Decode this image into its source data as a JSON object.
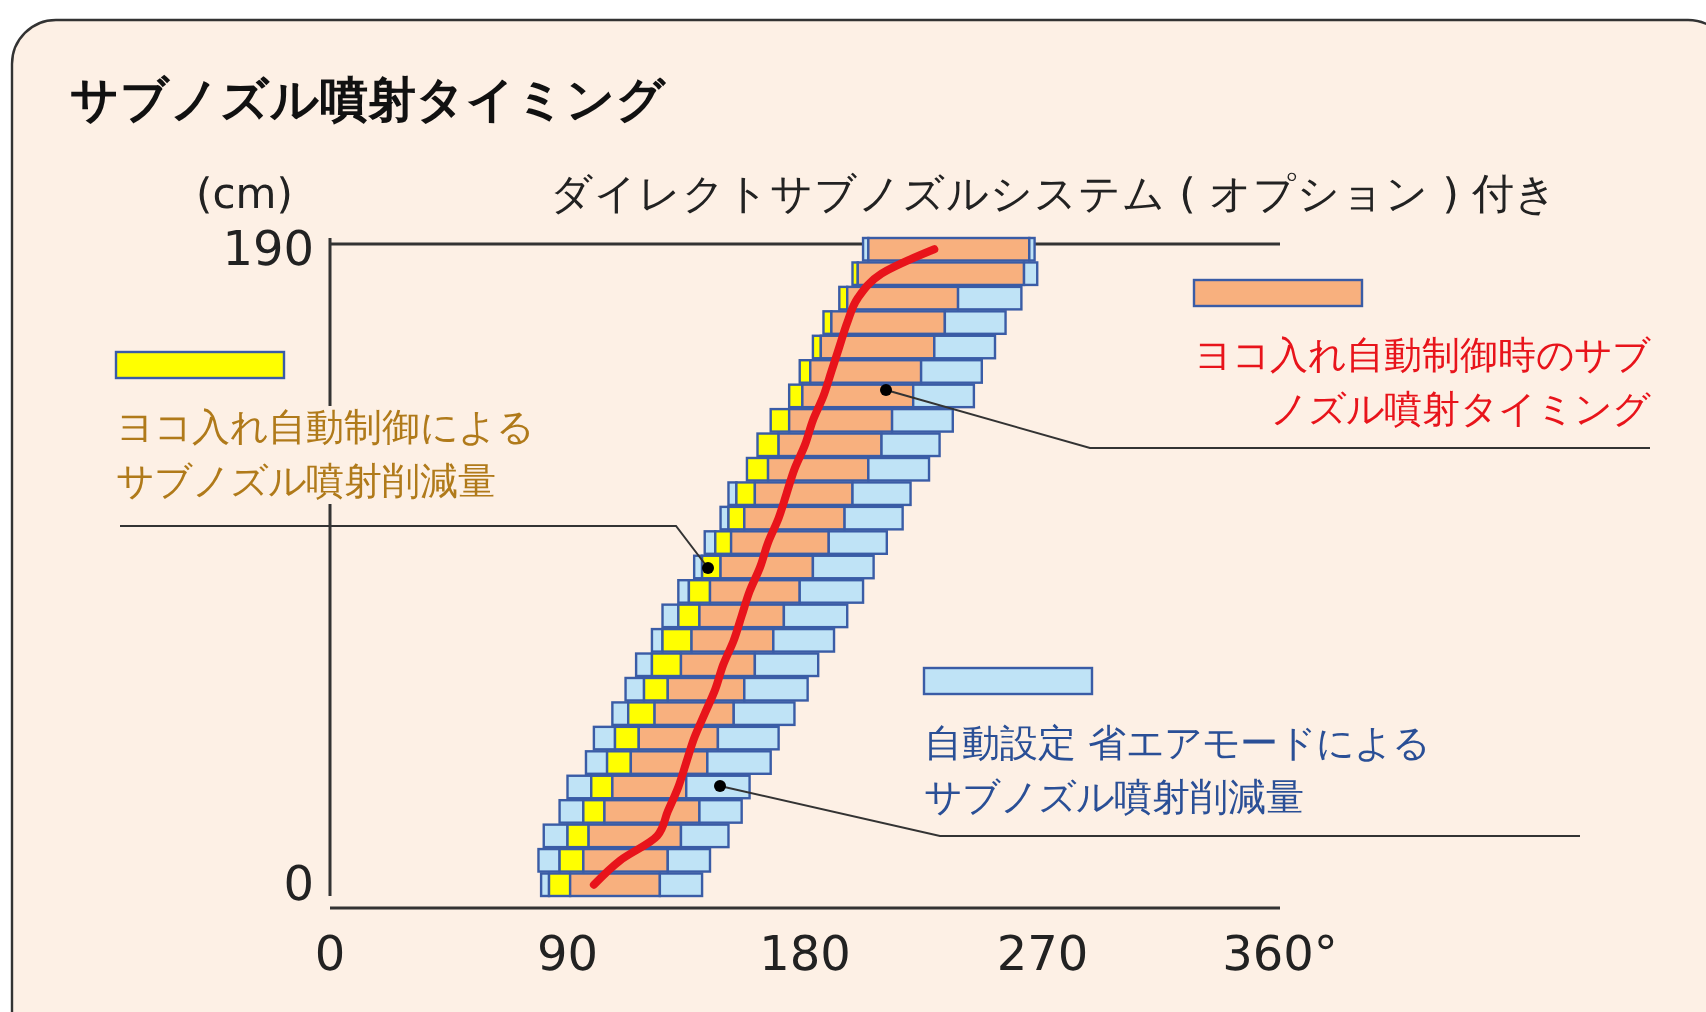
{
  "chart_data": {
    "type": "bar",
    "orientation": "horizontal",
    "title": "サブノズル噴射タイミング",
    "subtitle": "ダイレクトサブノズルシステム ( オプション ) 付き",
    "ylabel": "(cm)",
    "categories": [
      "190",
      null,
      null,
      null,
      null,
      null,
      null,
      null,
      null,
      null,
      null,
      null,
      null,
      null,
      null,
      null,
      null,
      null,
      null,
      null,
      null,
      null,
      null,
      null,
      null,
      null,
      "0"
    ],
    "series": [
      {
        "color": "#bfe3f6",
        "base": [
          202,
          null,
          null,
          null,
          null,
          null,
          null,
          null,
          null,
          null,
          151,
          148,
          142,
          138,
          132,
          126,
          122,
          116,
          112,
          107,
          100,
          97,
          90,
          87,
          81,
          79,
          80
        ],
        "values": [
          2,
          null,
          null,
          null,
          null,
          null,
          null,
          null,
          null,
          null,
          3,
          3,
          4,
          3,
          4,
          6,
          4,
          6,
          7,
          6,
          8,
          8,
          9,
          9,
          9,
          8,
          3
        ]
      },
      {
        "name": "ヨコ入れ自動制御によるサブノズル噴射削減量",
        "color": "#ffff00",
        "base": [
          null,
          198,
          193,
          187,
          183,
          178,
          174,
          167,
          162,
          158,
          154,
          151,
          146,
          141,
          136,
          132,
          126,
          122,
          119,
          113,
          108,
          105,
          99,
          96,
          90,
          87,
          83
        ],
        "values": [
          null,
          2,
          3,
          3,
          3,
          4,
          5,
          7,
          8,
          8,
          7,
          6,
          6,
          7,
          8,
          8,
          11,
          11,
          9,
          10,
          9,
          9,
          8,
          8,
          8,
          9,
          8
        ]
      },
      {
        "name": "ヨコ入れ自動制御時のサブノズル噴射タイミング",
        "color": "#f8b07e",
        "base": [
          204,
          200,
          196,
          190,
          186,
          182,
          179,
          174,
          170,
          166,
          161,
          157,
          152,
          148,
          144,
          140,
          137,
          133,
          128,
          123,
          117,
          114,
          107,
          104,
          98,
          96,
          91
        ],
        "values": [
          61,
          63,
          42,
          43,
          43,
          42,
          42,
          39,
          39,
          38,
          37,
          38,
          37,
          35,
          34,
          32,
          31,
          28,
          29,
          30,
          30,
          29,
          28,
          36,
          35,
          32,
          34
        ]
      },
      {
        "name": "自動設定 省エアモードによるサブノズル噴射削減量",
        "color": "#bfe3f6",
        "base": [
          265,
          263,
          238,
          233,
          229,
          224,
          221,
          213,
          209,
          204,
          198,
          195,
          189,
          183,
          178,
          172,
          168,
          161,
          157,
          153,
          147,
          143,
          135,
          140,
          133,
          128,
          125
        ],
        "values": [
          2,
          5,
          24,
          23,
          23,
          23,
          23,
          23,
          22,
          23,
          22,
          22,
          22,
          23,
          24,
          24,
          23,
          24,
          24,
          23,
          23,
          24,
          24,
          16,
          18,
          16,
          16
        ]
      },
      {
        "type": "line",
        "color": "#e8141b",
        "values": [
          229,
          209,
          200,
          196,
          193,
          190,
          187,
          183,
          180,
          176,
          173,
          170,
          166,
          163,
          159,
          156,
          153,
          149,
          146,
          142,
          138,
          135,
          132,
          128,
          124,
          110,
          100
        ]
      }
    ],
    "xlim": [
      0,
      360
    ],
    "xticks": [
      0,
      90,
      180,
      270,
      {
        "value": 360,
        "label": "360°"
      }
    ],
    "legend": "right"
  }
}
